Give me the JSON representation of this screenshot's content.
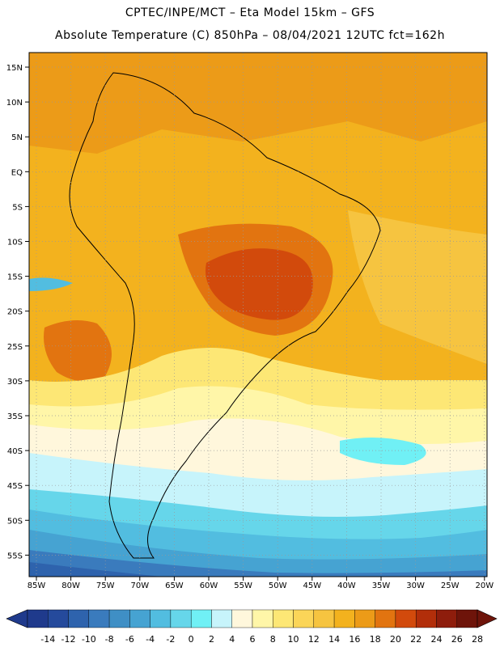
{
  "header": {
    "title_line1": "CPTEC/INPE/MCT –  Eta Model 15km – GFS",
    "title_line2": "Absolute Temperature (C) 850hPa – 08/04/2021 12UTC fct=162h"
  },
  "map": {
    "lat_labels": [
      "15N",
      "10N",
      "5N",
      "EQ",
      "5S",
      "10S",
      "15S",
      "20S",
      "25S",
      "30S",
      "35S",
      "40S",
      "45S",
      "50S",
      "55S"
    ],
    "lon_labels": [
      "85W",
      "80W",
      "75W",
      "70W",
      "65W",
      "60W",
      "55W",
      "50W",
      "45W",
      "40W",
      "35W",
      "30W",
      "25W",
      "20W"
    ]
  },
  "colorbar": {
    "labels": [
      "-14",
      "-12",
      "-10",
      "-8",
      "-6",
      "-4",
      "-2",
      "0",
      "2",
      "4",
      "6",
      "8",
      "10",
      "12",
      "14",
      "16",
      "18",
      "20",
      "22",
      "24",
      "26",
      "28"
    ],
    "colors": [
      "#1f3a8c",
      "#254a9c",
      "#2e63ad",
      "#3a7bbd",
      "#3f8fc5",
      "#46a3d2",
      "#52bde0",
      "#66d6ea",
      "#70f0f5",
      "#c7f4fb",
      "#fff7dc",
      "#fff6a8",
      "#fde775",
      "#fbd558",
      "#f6c440",
      "#f3b21e",
      "#ec9b18",
      "#e27410",
      "#d24a0c",
      "#b22e0a",
      "#8e1d0c",
      "#6e140a"
    ]
  }
}
